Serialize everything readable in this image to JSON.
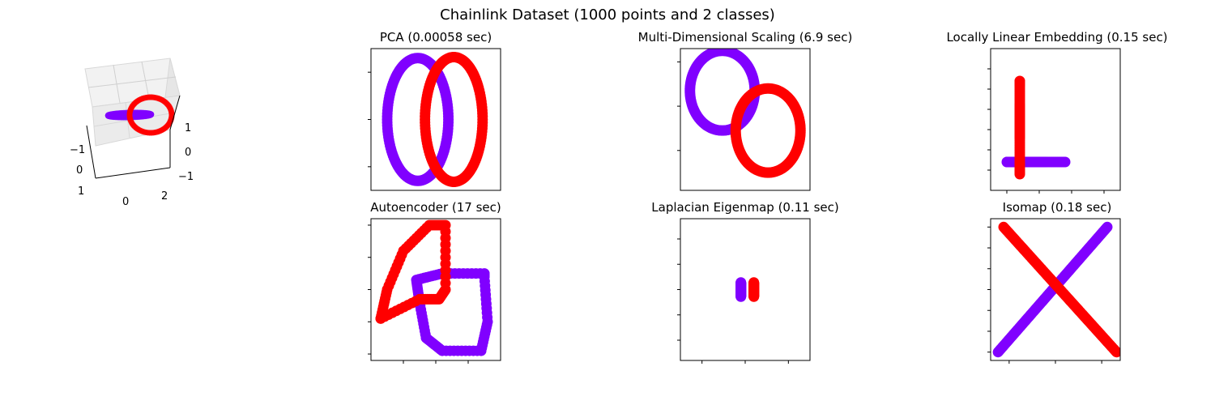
{
  "title": "Chainlink Dataset (1000 points and 2 classes)",
  "colors": {
    "class_0": "#8000ff",
    "class_1": "#ff0000"
  },
  "chart_data": [
    {
      "id": "original_3d",
      "type": "scatter",
      "projection": "3d",
      "title": "",
      "axes": {
        "x": {
          "ticks": [
            "−1",
            "0",
            "1"
          ]
        },
        "y": {
          "ticks": [
            "0",
            "2"
          ]
        },
        "z": {
          "ticks": [
            "1",
            "0",
            "−1"
          ]
        }
      },
      "series": [
        {
          "class": 0,
          "shape": "ring",
          "center": [
            0,
            0,
            0
          ],
          "radius": 1,
          "plane": "xy"
        },
        {
          "class": 1,
          "shape": "ring",
          "center": [
            1,
            0,
            0
          ],
          "radius": 1,
          "plane": "xz"
        }
      ]
    },
    {
      "id": "pca",
      "type": "scatter",
      "title": "PCA (0.00058 sec)",
      "xlim": [
        -1.3,
        2.3
      ],
      "ylim": [
        -1.5,
        1.5
      ],
      "xticks": [],
      "yticks": [
        -1,
        0,
        1
      ],
      "series": [
        {
          "class": 0,
          "shape": "ring",
          "cx": 0.0,
          "cy": 0.0,
          "rx": 0.85,
          "ry": 1.3
        },
        {
          "class": 1,
          "shape": "ring",
          "cx": 1.0,
          "cy": 0.0,
          "rx": 0.8,
          "ry": 1.32
        }
      ]
    },
    {
      "id": "mds",
      "type": "scatter",
      "title": "Multi-Dimensional Scaling (6.9 sec)",
      "xlim": [
        -1.4,
        2.0
      ],
      "ylim": [
        -1.9,
        1.3
      ],
      "xticks": [],
      "yticks": [
        -1,
        0,
        1
      ],
      "series": [
        {
          "class": 0,
          "shape": "ring",
          "cx": -0.3,
          "cy": 0.35,
          "rx": 0.85,
          "ry": 0.9
        },
        {
          "class": 1,
          "shape": "ring",
          "cx": 0.9,
          "cy": -0.55,
          "rx": 0.85,
          "ry": 0.95
        }
      ]
    },
    {
      "id": "lle",
      "type": "scatter",
      "title": "Locally Linear Embedding (0.15 sec)",
      "xlim": [
        -0.15,
        0.25
      ],
      "ylim": [
        -0.15,
        0.2
      ],
      "xticks": [
        -0.1,
        0.0,
        0.1,
        0.2
      ],
      "yticks": [
        -0.1,
        -0.05,
        0.0,
        0.05,
        0.1,
        0.15
      ],
      "series": [
        {
          "class": 0,
          "points": [
            [
              -0.1,
              -0.08
            ],
            [
              -0.09,
              -0.08
            ],
            [
              -0.08,
              -0.08
            ],
            [
              -0.07,
              -0.08
            ],
            [
              -0.06,
              -0.08
            ],
            [
              -0.05,
              -0.08
            ],
            [
              -0.04,
              -0.08
            ],
            [
              -0.03,
              -0.08
            ],
            [
              -0.02,
              -0.08
            ],
            [
              -0.01,
              -0.08
            ],
            [
              0.0,
              -0.08
            ],
            [
              0.01,
              -0.08
            ],
            [
              0.02,
              -0.08
            ],
            [
              0.08,
              -0.08
            ]
          ]
        },
        {
          "class": 1,
          "points": [
            [
              -0.06,
              0.12
            ],
            [
              -0.06,
              0.11
            ],
            [
              -0.06,
              0.06
            ],
            [
              -0.06,
              0.05
            ],
            [
              -0.06,
              0.04
            ],
            [
              -0.06,
              0.03
            ],
            [
              -0.06,
              0.02
            ],
            [
              -0.06,
              0.01
            ],
            [
              -0.06,
              0.0
            ],
            [
              -0.06,
              -0.01
            ],
            [
              -0.06,
              -0.02
            ],
            [
              -0.06,
              -0.08
            ],
            [
              -0.06,
              -0.11
            ]
          ]
        }
      ]
    },
    {
      "id": "autoencoder",
      "type": "scatter",
      "title": "Autoencoder (17 sec)",
      "xlim": [
        -2.0,
        2.0
      ],
      "ylim": [
        -2.2,
        2.2
      ],
      "xticks": [
        -1,
        0,
        1
      ],
      "yticks": [
        -2,
        -1,
        0,
        1,
        2
      ],
      "series": [
        {
          "class": 0,
          "points": [
            [
              -0.5,
              -0.4
            ],
            [
              -0.6,
              0.3
            ],
            [
              0.2,
              0.5
            ],
            [
              1.5,
              0.5
            ],
            [
              1.5,
              0.4
            ],
            [
              1.6,
              -1.0
            ],
            [
              1.4,
              -1.9
            ],
            [
              0.2,
              -1.9
            ],
            [
              -0.3,
              -1.5
            ],
            [
              -0.5,
              -0.4
            ]
          ]
        },
        {
          "class": 1,
          "points": [
            [
              -1.7,
              -0.9
            ],
            [
              -1.5,
              0.0
            ],
            [
              -1.0,
              1.2
            ],
            [
              -0.2,
              2.0
            ],
            [
              0.3,
              2.0
            ],
            [
              0.3,
              0.0
            ],
            [
              0.1,
              -0.3
            ],
            [
              -0.5,
              -0.3
            ],
            [
              -1.7,
              -0.9
            ]
          ]
        }
      ]
    },
    {
      "id": "laplacian",
      "type": "scatter",
      "title": "Laplacian Eigenmap (0.11 sec)",
      "xlim": [
        -0.15,
        0.15
      ],
      "ylim": [
        -0.14,
        0.14
      ],
      "xticks": [
        -0.1,
        0.0,
        0.1
      ],
      "yticks": [
        -0.1,
        -0.05,
        0.0,
        0.05,
        0.1
      ],
      "series": [
        {
          "class": 0,
          "points": [
            [
              -0.01,
              0.014
            ],
            [
              -0.01,
              0.01
            ],
            [
              -0.01,
              0.005
            ],
            [
              -0.01,
              0.0
            ],
            [
              -0.01,
              -0.005
            ],
            [
              -0.01,
              -0.01
            ],
            [
              -0.01,
              -0.014
            ]
          ]
        },
        {
          "class": 1,
          "points": [
            [
              0.02,
              0.014
            ],
            [
              0.02,
              0.01
            ],
            [
              0.02,
              0.005
            ],
            [
              0.02,
              0.0
            ],
            [
              0.02,
              -0.005
            ],
            [
              0.02,
              -0.01
            ],
            [
              0.02,
              -0.014
            ]
          ]
        }
      ]
    },
    {
      "id": "isomap",
      "type": "scatter",
      "title": "Isomap (0.18 sec)",
      "xlim": [
        -3.5,
        3.5
      ],
      "ylim": [
        -3.4,
        3.4
      ],
      "xticks": [
        -2.5,
        0,
        2.5
      ],
      "yticks": [
        -3,
        -2,
        -1,
        0,
        1,
        2,
        3
      ],
      "series": [
        {
          "class": 0,
          "shape": "line",
          "from": [
            -3.1,
            -3.0
          ],
          "to": [
            2.8,
            3.0
          ]
        },
        {
          "class": 1,
          "shape": "line",
          "from": [
            -2.8,
            3.0
          ],
          "to": [
            3.3,
            -3.0
          ]
        }
      ]
    }
  ]
}
